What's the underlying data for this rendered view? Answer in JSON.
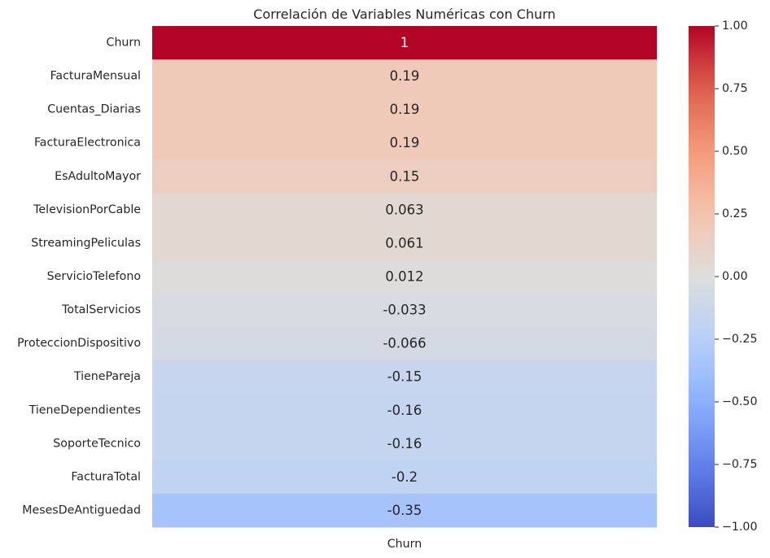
{
  "chart_data": {
    "type": "heatmap",
    "title": "Correlación de Variables Numéricas con Churn",
    "columns": [
      "Churn"
    ],
    "rows": [
      "Churn",
      "FacturaMensual",
      "Cuentas_Diarias",
      "FacturaElectronica",
      "EsAdultoMayor",
      "TelevisionPorCable",
      "StreamingPeliculas",
      "ServicioTelefono",
      "TotalServicios",
      "ProteccionDispositivo",
      "TienePareja",
      "TieneDependientes",
      "SoporteTecnico",
      "FacturaTotal",
      "MesesDeAntiguedad"
    ],
    "values": [
      1.0,
      0.19,
      0.19,
      0.19,
      0.15,
      0.063,
      0.061,
      0.012,
      -0.033,
      -0.066,
      -0.15,
      -0.16,
      -0.16,
      -0.2,
      -0.35
    ],
    "annotations": [
      "1",
      "0.19",
      "0.19",
      "0.19",
      "0.15",
      "0.063",
      "0.061",
      "0.012",
      "-0.033",
      "-0.066",
      "-0.15",
      "-0.16",
      "-0.16",
      "-0.2",
      "-0.35"
    ],
    "colormap": "coolwarm",
    "vmin": -1.0,
    "vmax": 1.0,
    "colorbar_ticks": [
      1.0,
      0.75,
      0.5,
      0.25,
      0.0,
      -0.25,
      -0.5,
      -0.75,
      -1.0
    ],
    "colorbar_tick_labels": [
      "1.00",
      "0.75",
      "0.50",
      "0.25",
      "0.00",
      "−0.25",
      "−0.50",
      "−0.75",
      "−1.00"
    ]
  }
}
